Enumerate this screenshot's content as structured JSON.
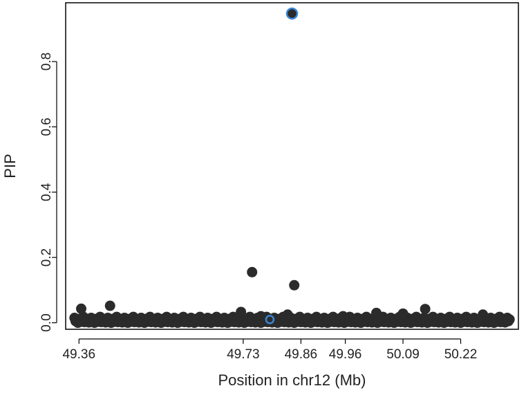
{
  "chart_data": {
    "type": "scatter",
    "title": "",
    "xlabel": "Position in chr12 (Mb)",
    "ylabel": "PIP",
    "x_ticks": [
      "49.36",
      "49.73",
      "49.86",
      "49.96",
      "50.09",
      "50.22"
    ],
    "y_ticks": [
      "0.0",
      "0.2",
      "0.4",
      "0.6",
      "0.8"
    ],
    "xlim": [
      49.33,
      50.35
    ],
    "ylim": [
      -0.02,
      0.98
    ],
    "grid": false,
    "colors": {
      "points": "#2b2b2b",
      "highlight": "#3a86d6",
      "axes": "#000000"
    },
    "highlighted_points": [
      {
        "x": 49.84,
        "y": 0.947
      },
      {
        "x": 49.79,
        "y": 0.01
      }
    ],
    "notable_points": [
      {
        "x": 49.365,
        "y": 0.043
      },
      {
        "x": 49.43,
        "y": 0.052
      },
      {
        "x": 49.725,
        "y": 0.033
      },
      {
        "x": 49.75,
        "y": 0.155
      },
      {
        "x": 49.77,
        "y": 0.02
      },
      {
        "x": 49.83,
        "y": 0.025
      },
      {
        "x": 49.845,
        "y": 0.115
      },
      {
        "x": 49.955,
        "y": 0.02
      },
      {
        "x": 50.03,
        "y": 0.03
      },
      {
        "x": 50.09,
        "y": 0.028
      },
      {
        "x": 50.14,
        "y": 0.042
      },
      {
        "x": 50.27,
        "y": 0.025
      }
    ],
    "baseline_points": {
      "x_start": 49.35,
      "x_end": 50.33,
      "y_values": [
        0.015,
        0.005,
        0.01,
        0.0,
        0.008,
        0.012,
        0.003,
        0.006,
        0.018,
        0.002,
        0.009,
        0.004,
        0.011,
        0.001,
        0.007
      ]
    }
  }
}
